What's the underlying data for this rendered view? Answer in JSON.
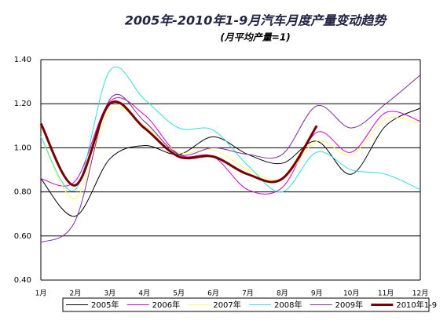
{
  "chart_data": {
    "type": "line",
    "title": "2005年-2010年1-9月汽车月度产量变动趋势",
    "subtitle": "(月平均产量=1)",
    "categories": [
      "1月",
      "2月",
      "3月",
      "4月",
      "5月",
      "6月",
      "7月",
      "8月",
      "9月",
      "10月",
      "11月",
      "12月"
    ],
    "ylim": [
      0.4,
      1.4
    ],
    "yticks": [
      {
        "value": 0.4,
        "label": "0.40"
      },
      {
        "value": 0.6,
        "label": "0.60"
      },
      {
        "value": 0.8,
        "label": "0.80"
      },
      {
        "value": 1.0,
        "label": "1.00"
      },
      {
        "value": 1.2,
        "label": "1.20"
      },
      {
        "value": 1.4,
        "label": "1.40"
      }
    ],
    "grid": true,
    "legend": "bottom",
    "series": [
      {
        "name": "2005年",
        "color": "#000000",
        "values": [
          0.86,
          0.69,
          0.95,
          1.01,
          0.97,
          1.05,
          0.97,
          0.93,
          1.03,
          0.88,
          1.1,
          1.18
        ]
      },
      {
        "name": "2006年",
        "color": "#cc00cc",
        "values": [
          0.86,
          0.85,
          1.21,
          1.15,
          0.97,
          0.96,
          0.81,
          0.82,
          1.07,
          0.98,
          1.16,
          1.12
        ]
      },
      {
        "name": "2007年",
        "color": "#ffff66",
        "values": [
          1.05,
          0.77,
          1.17,
          1.1,
          0.98,
          0.99,
          0.9,
          0.86,
          1.03,
          0.97,
          1.13,
          1.11
        ]
      },
      {
        "name": "2008年",
        "color": "#33dddd",
        "values": [
          1.05,
          0.81,
          1.35,
          1.22,
          1.09,
          1.08,
          0.92,
          0.8,
          0.98,
          0.9,
          0.88,
          0.81
        ]
      },
      {
        "name": "2009年",
        "color": "#7a2ea0",
        "values": [
          0.57,
          0.67,
          1.22,
          1.12,
          0.97,
          1.0,
          0.97,
          0.97,
          1.19,
          1.09,
          1.2,
          1.33
        ]
      },
      {
        "name": "2010年1-9",
        "color": "#7a0000",
        "values": [
          1.11,
          0.83,
          1.2,
          1.09,
          0.96,
          0.96,
          0.88,
          0.86,
          1.1,
          null,
          null,
          null
        ]
      }
    ]
  }
}
